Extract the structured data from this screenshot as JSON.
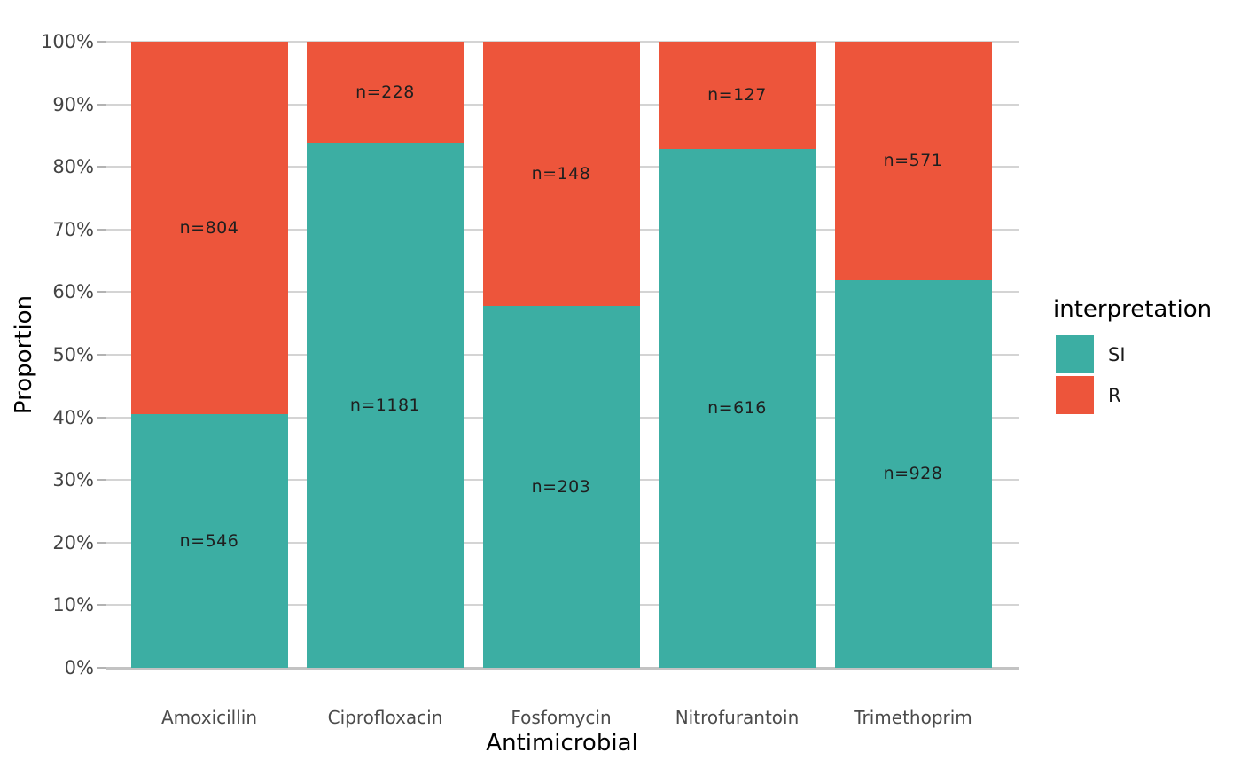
{
  "chart_data": {
    "type": "bar",
    "variant": "stacked-proportion-100pct",
    "title": "",
    "xlabel": "Antimicrobial",
    "ylabel": "Proportion",
    "categories": [
      "Amoxicillin",
      "Ciprofloxacin",
      "Fosfomycin",
      "Nitrofurantoin",
      "Trimethoprim"
    ],
    "series": [
      {
        "name": "SI",
        "color": "#3CAEA3",
        "counts": [
          546,
          1181,
          203,
          616,
          928
        ],
        "bar_labels": [
          "n=546",
          "n=1181",
          "n=203",
          "n=616",
          "n=928"
        ]
      },
      {
        "name": "R",
        "color": "#ED553B",
        "counts": [
          804,
          228,
          148,
          127,
          571
        ],
        "bar_labels": [
          "n=804",
          "n=228",
          "n=148",
          "n=127",
          "n=571"
        ]
      }
    ],
    "si_proportion_pct": [
      40.4,
      83.8,
      57.8,
      82.9,
      61.9
    ],
    "y_axis": {
      "ticks": [
        "0%",
        "10%",
        "20%",
        "30%",
        "40%",
        "50%",
        "60%",
        "70%",
        "80%",
        "90%",
        "100%"
      ],
      "range_pct": [
        0,
        100
      ]
    },
    "grid": {
      "horizontal_major": true,
      "minor": false,
      "vertical": false
    },
    "legend": {
      "title": "interpretation",
      "position": "right",
      "items": [
        {
          "label": "SI",
          "color": "#3CAEA3"
        },
        {
          "label": "R",
          "color": "#ED553B"
        }
      ]
    }
  },
  "colors": {
    "background": "#ffffff",
    "gridline": "#d4d4d4",
    "baseline": "#c3c3c3",
    "tick_mark": "#b3b3b3",
    "axis_tick_text": "#444444",
    "category_text": "#4b4b4b",
    "axis_title_text": "#000000",
    "bar_label_text": "#1f1f1f",
    "si": "#3CAEA3",
    "r": "#ED553B"
  }
}
